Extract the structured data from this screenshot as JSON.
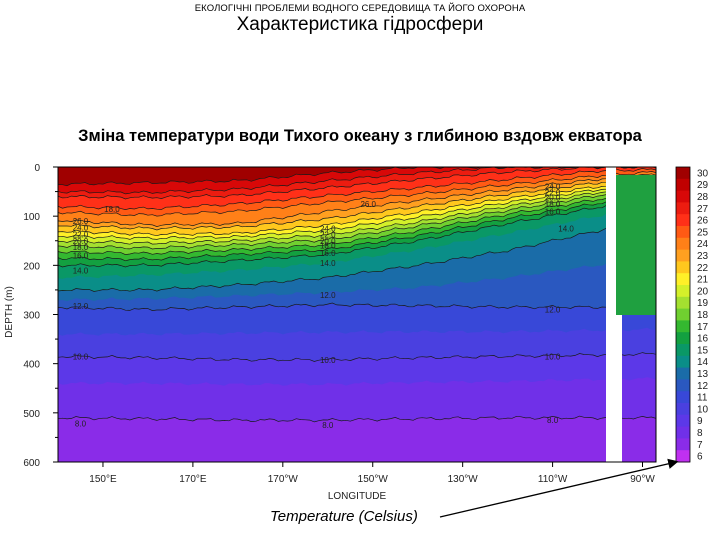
{
  "header": {
    "subtitle": "ЕКОЛОГІЧНІ ПРОБЛЕМИ ВОДНОГО СЕРЕДОВИЩА ТА ЙОГО ОХОРОНА",
    "title": "Характеристика гідросфери"
  },
  "caption": "Temperature (Celsius)",
  "chart_data": {
    "type": "heatmap",
    "title": "Зміна температури води Тихого океану з глибиною вздовж екватора",
    "xlabel": "LONGITUDE",
    "ylabel": "DEPTH (m)",
    "x_ticks": [
      "150°E",
      "170°E",
      "170°W",
      "150°W",
      "130°W",
      "110°W",
      "90°W"
    ],
    "y_ticks": [
      "0",
      "100",
      "200",
      "300",
      "400",
      "500",
      "600"
    ],
    "ylim": [
      0,
      600
    ],
    "colorbar_labels": [
      "30",
      "29",
      "28",
      "27",
      "26",
      "25",
      "24",
      "23",
      "22",
      "21",
      "20",
      "19",
      "18",
      "17",
      "16",
      "15",
      "14",
      "13",
      "12",
      "11",
      "10",
      "9",
      "8",
      "7",
      "6"
    ],
    "colorbar_colors": [
      "#a00000",
      "#c00000",
      "#d80808",
      "#ec1c10",
      "#ff3018",
      "#ff5a14",
      "#ff8018",
      "#ffa020",
      "#ffc81e",
      "#fff028",
      "#d4f02a",
      "#a4e030",
      "#70d030",
      "#34b830",
      "#13a040",
      "#0a9866",
      "#0a8e88",
      "#1a6ca8",
      "#2a58c0",
      "#3848d8",
      "#4a40e0",
      "#5c38e8",
      "#7030e8",
      "#8a2ce8",
      "#c030f0"
    ],
    "contour_labels": [
      {
        "lon": 152,
        "depth": 85,
        "text": "18.0"
      },
      {
        "lon": 145,
        "depth": 110,
        "text": "26.0"
      },
      {
        "lon": 145,
        "depth": 123,
        "text": "24.0"
      },
      {
        "lon": 145,
        "depth": 137,
        "text": "22.0"
      },
      {
        "lon": 145,
        "depth": 150,
        "text": "20.0"
      },
      {
        "lon": 145,
        "depth": 163,
        "text": "18.0"
      },
      {
        "lon": 145,
        "depth": 180,
        "text": "16.0"
      },
      {
        "lon": 145,
        "depth": 210,
        "text": "14.0"
      },
      {
        "lon": 145,
        "depth": 283,
        "text": "12.0"
      },
      {
        "lon": 145,
        "depth": 385,
        "text": "10.0"
      },
      {
        "lon": 145,
        "depth": 522,
        "text": "8.0"
      },
      {
        "lon": -151,
        "depth": 75,
        "text": "26.0"
      },
      {
        "lon": -160,
        "depth": 125,
        "text": "24.0"
      },
      {
        "lon": -160,
        "depth": 137,
        "text": "22.0"
      },
      {
        "lon": -160,
        "depth": 150,
        "text": "20.0"
      },
      {
        "lon": -160,
        "depth": 160,
        "text": "18.0"
      },
      {
        "lon": -160,
        "depth": 175,
        "text": "16.0"
      },
      {
        "lon": -160,
        "depth": 195,
        "text": "14.0"
      },
      {
        "lon": -160,
        "depth": 260,
        "text": "12.0"
      },
      {
        "lon": -160,
        "depth": 393,
        "text": "10.0"
      },
      {
        "lon": -160,
        "depth": 525,
        "text": "8.0"
      },
      {
        "lon": -110,
        "depth": 40,
        "text": "24.0"
      },
      {
        "lon": -110,
        "depth": 52,
        "text": "22.0"
      },
      {
        "lon": -110,
        "depth": 62,
        "text": "20.0"
      },
      {
        "lon": -110,
        "depth": 75,
        "text": "18.0"
      },
      {
        "lon": -110,
        "depth": 90,
        "text": "16.0"
      },
      {
        "lon": -107,
        "depth": 125,
        "text": "14.0"
      },
      {
        "lon": -110,
        "depth": 290,
        "text": "12.0"
      },
      {
        "lon": -110,
        "depth": 385,
        "text": "10.0"
      },
      {
        "lon": -110,
        "depth": 515,
        "text": "8.0"
      }
    ]
  }
}
